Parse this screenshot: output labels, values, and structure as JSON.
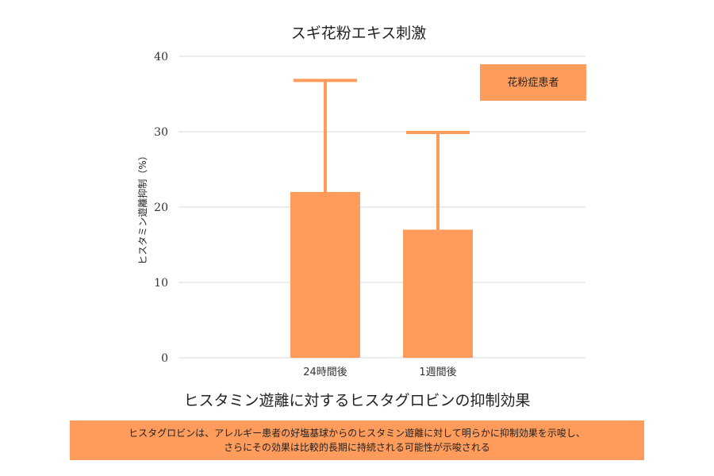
{
  "chart_data": {
    "type": "bar",
    "title": "スギ花粉エキス刺激",
    "xlabel": "",
    "ylabel": "ヒスタミン遊離抑制（%）",
    "categories": [
      "24時間後",
      "1週間後"
    ],
    "series": [
      {
        "name": "花粉症患者",
        "values": [
          22,
          17
        ],
        "error_upper": [
          36.8,
          29.9
        ]
      }
    ],
    "ylim": [
      0,
      40
    ],
    "yticks": [
      0,
      10,
      20,
      30,
      40
    ],
    "grid": true,
    "legend_position": "top-right",
    "bar_color": "#ff9c5b"
  },
  "subtitle": "ヒスタミン遊離に対するヒスタグロビンの抑制効果",
  "note": {
    "line1": "ヒスタグロビンは、アレルギー患者の好塩基球からのヒスタミン遊離に対して明らかに抑制効果を示唆し、",
    "line2": "さらにその効果は比較的長期に持続される可能性が示唆される",
    "color": "#ff9c5b"
  }
}
